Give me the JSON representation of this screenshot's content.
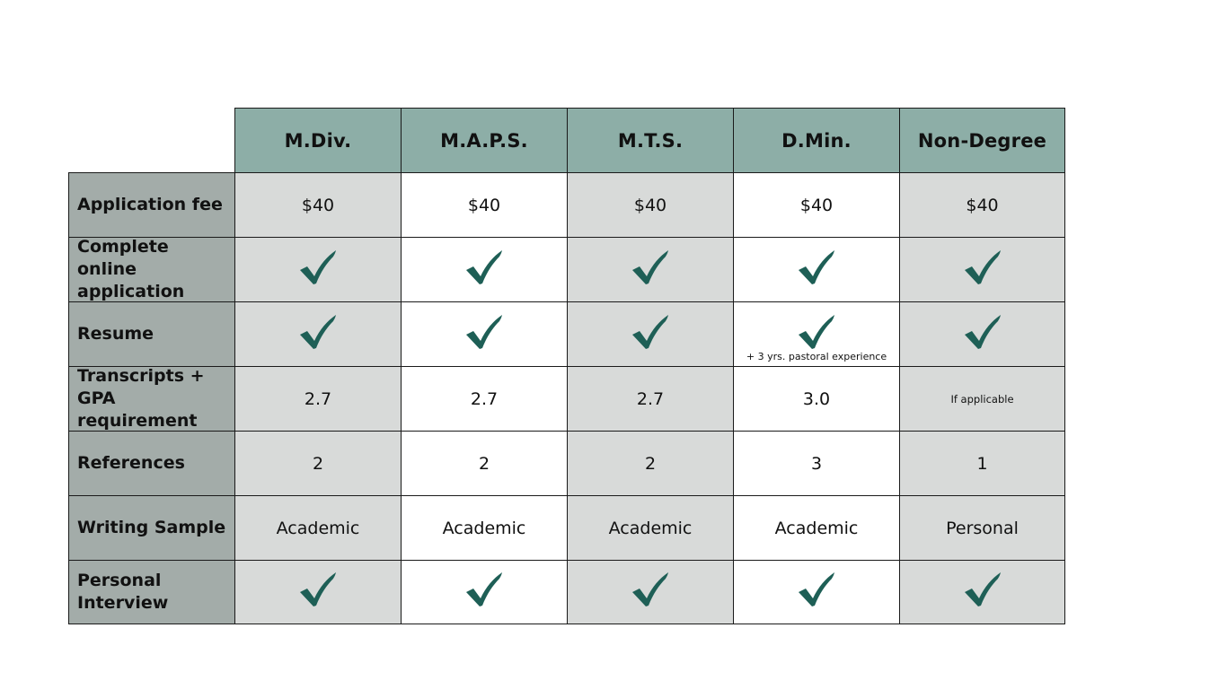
{
  "columns": [
    "M.Div.",
    "M.A.P.S.",
    "M.T.S.",
    "D.Min.",
    "Non-Degree"
  ],
  "rows": [
    {
      "label": "Application fee",
      "cells": [
        {
          "kind": "text",
          "text": "$40"
        },
        {
          "kind": "text",
          "text": "$40"
        },
        {
          "kind": "text",
          "text": "$40"
        },
        {
          "kind": "text",
          "text": "$40"
        },
        {
          "kind": "text",
          "text": "$40"
        }
      ]
    },
    {
      "label": "Complete online application",
      "cells": [
        {
          "kind": "check"
        },
        {
          "kind": "check"
        },
        {
          "kind": "check"
        },
        {
          "kind": "check"
        },
        {
          "kind": "check"
        }
      ]
    },
    {
      "label": "Resume",
      "cells": [
        {
          "kind": "check"
        },
        {
          "kind": "check"
        },
        {
          "kind": "check"
        },
        {
          "kind": "check",
          "note": "+ 3 yrs. pastoral experience"
        },
        {
          "kind": "check"
        }
      ]
    },
    {
      "label": "Transcripts + GPA requirement",
      "cells": [
        {
          "kind": "text",
          "text": "2.7"
        },
        {
          "kind": "text",
          "text": "2.7"
        },
        {
          "kind": "text",
          "text": "2.7"
        },
        {
          "kind": "text",
          "text": "3.0"
        },
        {
          "kind": "small",
          "text": "If applicable"
        }
      ]
    },
    {
      "label": "References",
      "cells": [
        {
          "kind": "text",
          "text": "2"
        },
        {
          "kind": "text",
          "text": "2"
        },
        {
          "kind": "text",
          "text": "2"
        },
        {
          "kind": "text",
          "text": "3"
        },
        {
          "kind": "text",
          "text": "1"
        }
      ]
    },
    {
      "label": "Writing Sample",
      "cells": [
        {
          "kind": "text",
          "text": "Academic"
        },
        {
          "kind": "text",
          "text": "Academic"
        },
        {
          "kind": "text",
          "text": "Academic"
        },
        {
          "kind": "text",
          "text": "Academic"
        },
        {
          "kind": "text",
          "text": "Personal"
        }
      ]
    },
    {
      "label": "Personal Interview",
      "cells": [
        {
          "kind": "check"
        },
        {
          "kind": "check"
        },
        {
          "kind": "check"
        },
        {
          "kind": "check"
        },
        {
          "kind": "check"
        }
      ]
    }
  ],
  "colors": {
    "header_bg": "#8daea7",
    "row_label_bg": "#a3aca9",
    "alt_column_bg": "#d8dad9",
    "check_color": "#1e5f56"
  },
  "icons": {
    "check": "checkmark-icon"
  }
}
